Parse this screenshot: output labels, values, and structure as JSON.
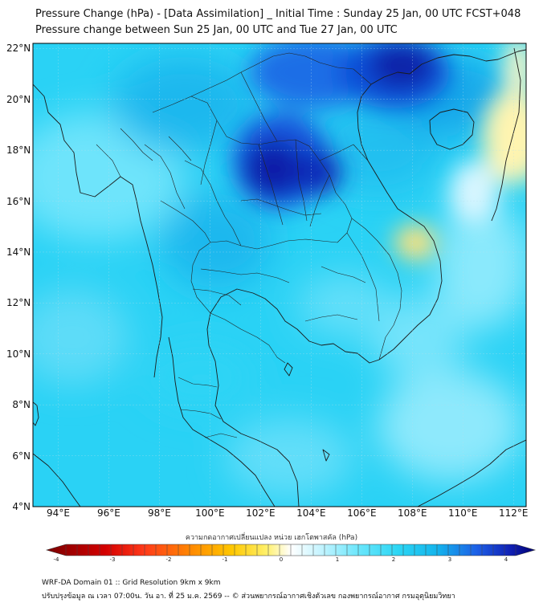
{
  "header": {
    "title": "Pressure Change (hPa) - [Data Assimilation] _ Initial Time : Sunday 25 Jan, 00 UTC FCST+048",
    "subtitle": "Pressure change between Sun 25 Jan, 00 UTC and Tue 27 Jan, 00 UTC"
  },
  "map": {
    "lat_labels": [
      "22°N",
      "20°N",
      "18°N",
      "16°N",
      "14°N",
      "12°N",
      "10°N",
      "8°N",
      "6°N",
      "4°N"
    ],
    "lon_labels": [
      "94°E",
      "96°E",
      "98°E",
      "100°E",
      "102°E",
      "104°E",
      "106°E",
      "108°E",
      "110°E",
      "112°E"
    ],
    "lat_values": [
      22,
      20,
      18,
      16,
      14,
      12,
      10,
      8,
      6,
      4
    ],
    "lon_values": [
      94,
      96,
      98,
      100,
      102,
      104,
      106,
      108,
      110,
      112
    ],
    "extent": {
      "lon_min": 93,
      "lon_max": 112.5,
      "lat_min": 4,
      "lat_max": 22.2
    }
  },
  "colorbar": {
    "title": "ความกดอากาศเปลี่ยนแปลง หน่วย เฮกโตพาสคัล (hPa)",
    "ticks": [
      "-4",
      "-3",
      "-2",
      "-1",
      "0",
      "1",
      "2",
      "3",
      "4"
    ],
    "tick_values": [
      -4,
      -3,
      -2,
      -1,
      0,
      1,
      2,
      3,
      4
    ],
    "range": [
      -4,
      4
    ],
    "colors": [
      "#7a0000",
      "#d40000",
      "#ff3a1a",
      "#ff8c00",
      "#ffc800",
      "#fff06a",
      "#ffffff",
      "#ffffff",
      "#c6f4ff",
      "#2cd6f4",
      "#14b4ec",
      "#1d60e6",
      "#1020b4",
      "#000070"
    ]
  },
  "footer": {
    "line1": "WRF-DA Domain 01 :: Grid Resolution 9km x 9km",
    "line2": "ปรับปรุงข้อมูล ณ เวลา 07:00น. วัน อา. ที่ 25 ม.ค. 2569 -- © ส่วนพยากรณ์อากาศเชิงตัวเลข กองพยากรณ์อากาศ กรมอุตุนิยมวิทยา"
  }
}
